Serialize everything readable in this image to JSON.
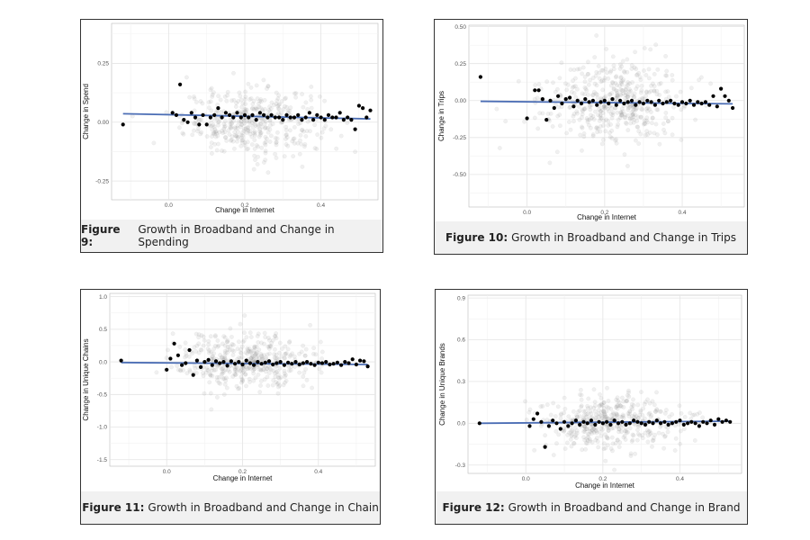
{
  "figures": [
    {
      "fig_label": "Figure 9:",
      "fig_title": "Growth in Broadband and Change in Spending",
      "chart_data": {
        "type": "scatter",
        "title": "Growth in Broadband and Change in Spending",
        "xlabel": "Change in Internet",
        "ylabel": "Change in Spend",
        "xlim": [
          -0.15,
          0.55
        ],
        "ylim": [
          -0.33,
          0.42
        ],
        "xticks": [
          0.0,
          0.2,
          0.4
        ],
        "xtick_labels": [
          "0.0",
          "0.2",
          "0.4"
        ],
        "yticks": [
          -0.25,
          0.0,
          0.25
        ],
        "ytick_labels": [
          "-0.25",
          "0.00",
          "0.25"
        ],
        "fit_line": {
          "x": [
            -0.12,
            0.53
          ],
          "y": [
            0.036,
            0.014
          ]
        },
        "cloud": {
          "center_x": 0.22,
          "spread_x": 0.09,
          "spread_y": 0.07,
          "n": 420
        },
        "binned_points": {
          "x": [
            -0.12,
            0.01,
            0.02,
            0.03,
            0.04,
            0.05,
            0.06,
            0.07,
            0.08,
            0.09,
            0.1,
            0.11,
            0.12,
            0.13,
            0.14,
            0.15,
            0.16,
            0.17,
            0.18,
            0.19,
            0.2,
            0.21,
            0.22,
            0.23,
            0.24,
            0.25,
            0.26,
            0.27,
            0.28,
            0.29,
            0.3,
            0.31,
            0.32,
            0.33,
            0.34,
            0.35,
            0.36,
            0.37,
            0.38,
            0.39,
            0.4,
            0.41,
            0.42,
            0.43,
            0.44,
            0.45,
            0.46,
            0.47,
            0.48,
            0.49,
            0.5,
            0.51,
            0.52,
            0.53
          ],
          "y": [
            -0.01,
            0.04,
            0.03,
            0.16,
            0.01,
            0.0,
            0.04,
            0.02,
            -0.01,
            0.03,
            -0.01,
            0.02,
            0.03,
            0.06,
            0.02,
            0.04,
            0.03,
            0.02,
            0.04,
            0.02,
            0.03,
            0.02,
            0.03,
            0.01,
            0.04,
            0.03,
            0.02,
            0.03,
            0.02,
            0.02,
            0.01,
            0.03,
            0.02,
            0.02,
            0.03,
            0.01,
            0.02,
            0.04,
            0.01,
            0.03,
            0.02,
            0.01,
            0.03,
            0.02,
            0.02,
            0.04,
            0.01,
            0.02,
            0.01,
            -0.03,
            0.07,
            0.06,
            0.02,
            0.05
          ]
        }
      }
    },
    {
      "fig_label": "Figure 10:",
      "fig_title": "Growth in Broadband and Change in Trips",
      "chart_data": {
        "type": "scatter",
        "title": "Growth in Broadband and Change in Trips",
        "xlabel": "Change in Internet",
        "ylabel": "Change in Trips",
        "xlim": [
          -0.15,
          0.56
        ],
        "ylim": [
          -0.72,
          0.51
        ],
        "xticks": [
          0.0,
          0.2,
          0.4
        ],
        "xtick_labels": [
          "0.0",
          "0.2",
          "0.4"
        ],
        "yticks": [
          -0.5,
          -0.25,
          0.0,
          0.25,
          0.5
        ],
        "ytick_labels": [
          "-0.50",
          "-0.25",
          "0.00",
          "0.25",
          "0.50"
        ],
        "fit_line": {
          "x": [
            -0.12,
            0.53
          ],
          "y": [
            -0.005,
            -0.022
          ]
        },
        "cloud": {
          "center_x": 0.22,
          "spread_x": 0.09,
          "spread_y": 0.14,
          "n": 460
        },
        "binned_points": {
          "x": [
            -0.12,
            0.0,
            0.02,
            0.03,
            0.04,
            0.05,
            0.06,
            0.07,
            0.08,
            0.09,
            0.1,
            0.11,
            0.12,
            0.13,
            0.14,
            0.15,
            0.16,
            0.17,
            0.18,
            0.19,
            0.2,
            0.21,
            0.22,
            0.23,
            0.24,
            0.25,
            0.26,
            0.27,
            0.28,
            0.29,
            0.3,
            0.31,
            0.32,
            0.33,
            0.34,
            0.35,
            0.36,
            0.37,
            0.38,
            0.39,
            0.4,
            0.41,
            0.42,
            0.43,
            0.44,
            0.45,
            0.46,
            0.47,
            0.48,
            0.49,
            0.5,
            0.51,
            0.52,
            0.53
          ],
          "y": [
            0.16,
            -0.12,
            0.07,
            0.07,
            0.01,
            -0.13,
            0.0,
            -0.05,
            0.03,
            -0.02,
            0.01,
            0.02,
            -0.04,
            0.0,
            -0.02,
            0.01,
            -0.01,
            0.0,
            -0.03,
            -0.01,
            0.0,
            -0.02,
            0.01,
            -0.03,
            0.0,
            -0.02,
            -0.01,
            0.0,
            -0.03,
            -0.01,
            -0.02,
            0.0,
            -0.01,
            -0.03,
            0.0,
            -0.02,
            -0.01,
            0.0,
            -0.02,
            -0.03,
            -0.01,
            -0.02,
            0.0,
            -0.03,
            -0.01,
            -0.02,
            -0.01,
            -0.03,
            0.03,
            -0.04,
            0.08,
            0.03,
            0.0,
            -0.05
          ]
        }
      }
    },
    {
      "fig_label": "Figure 11:",
      "fig_title": "Growth in Broadband and Change in Chain",
      "chart_data": {
        "type": "scatter",
        "title": "Growth in Broadband and Change in Chain",
        "xlabel": "Change in Internet",
        "ylabel": "Change in Unique Chains",
        "xlim": [
          -0.15,
          0.55
        ],
        "ylim": [
          -1.6,
          1.05
        ],
        "xticks": [
          0.0,
          0.2,
          0.4
        ],
        "xtick_labels": [
          "0.0",
          "0.2",
          "0.4"
        ],
        "yticks": [
          -1.5,
          -1.0,
          -0.5,
          0.0,
          0.5,
          1.0
        ],
        "ytick_labels": [
          "-1.5",
          "-1.0",
          "-0.5",
          "0.0",
          "0.5",
          "1.0"
        ],
        "fit_line": {
          "x": [
            -0.12,
            0.53
          ],
          "y": [
            -0.01,
            -0.04
          ]
        },
        "cloud": {
          "center_x": 0.21,
          "spread_x": 0.09,
          "spread_y": 0.22,
          "n": 440
        },
        "binned_points": {
          "x": [
            -0.12,
            0.0,
            0.01,
            0.02,
            0.03,
            0.04,
            0.05,
            0.06,
            0.07,
            0.08,
            0.09,
            0.1,
            0.11,
            0.12,
            0.13,
            0.14,
            0.15,
            0.16,
            0.17,
            0.18,
            0.19,
            0.2,
            0.21,
            0.22,
            0.23,
            0.24,
            0.25,
            0.26,
            0.27,
            0.28,
            0.29,
            0.3,
            0.31,
            0.32,
            0.33,
            0.34,
            0.35,
            0.36,
            0.37,
            0.38,
            0.39,
            0.4,
            0.41,
            0.42,
            0.43,
            0.44,
            0.45,
            0.46,
            0.47,
            0.48,
            0.49,
            0.5,
            0.51,
            0.52,
            0.53
          ],
          "y": [
            0.02,
            -0.12,
            0.05,
            0.28,
            0.1,
            -0.05,
            -0.02,
            0.18,
            -0.2,
            0.02,
            -0.08,
            0.0,
            0.03,
            -0.05,
            0.01,
            -0.02,
            0.0,
            -0.06,
            0.01,
            -0.03,
            0.0,
            -0.04,
            0.02,
            -0.02,
            -0.05,
            0.0,
            -0.03,
            -0.01,
            0.01,
            -0.04,
            -0.02,
            0.0,
            -0.05,
            -0.01,
            -0.03,
            0.0,
            -0.04,
            -0.02,
            0.0,
            -0.03,
            -0.05,
            -0.01,
            -0.02,
            0.0,
            -0.04,
            -0.03,
            -0.01,
            -0.05,
            0.0,
            -0.02,
            0.04,
            -0.04,
            0.02,
            0.01,
            -0.07
          ]
        }
      }
    },
    {
      "fig_label": "Figure 12:",
      "fig_title": "Growth in Broadband and Change in Brand",
      "chart_data": {
        "type": "scatter",
        "title": "Growth in Broadband and Change in Brand",
        "xlabel": "Change in Internet",
        "ylabel": "Change in Unique Brands",
        "xlim": [
          -0.15,
          0.56
        ],
        "ylim": [
          -0.36,
          0.92
        ],
        "xticks": [
          0.0,
          0.2,
          0.4
        ],
        "xtick_labels": [
          "0.0",
          "0.2",
          "0.4"
        ],
        "yticks": [
          -0.3,
          0.0,
          0.3,
          0.6,
          0.9
        ],
        "ytick_labels": [
          "-0.3",
          "0.0",
          "0.3",
          "0.6",
          "0.9"
        ],
        "fit_line": {
          "x": [
            -0.12,
            0.53
          ],
          "y": [
            0.0,
            0.015
          ]
        },
        "cloud": {
          "center_x": 0.22,
          "spread_x": 0.09,
          "spread_y": 0.1,
          "n": 440
        },
        "binned_points": {
          "x": [
            -0.12,
            0.01,
            0.02,
            0.03,
            0.04,
            0.05,
            0.06,
            0.07,
            0.08,
            0.09,
            0.1,
            0.11,
            0.12,
            0.13,
            0.14,
            0.15,
            0.16,
            0.17,
            0.18,
            0.19,
            0.2,
            0.21,
            0.22,
            0.23,
            0.24,
            0.25,
            0.26,
            0.27,
            0.28,
            0.29,
            0.3,
            0.31,
            0.32,
            0.33,
            0.34,
            0.35,
            0.36,
            0.37,
            0.38,
            0.39,
            0.4,
            0.41,
            0.42,
            0.43,
            0.44,
            0.45,
            0.46,
            0.47,
            0.48,
            0.49,
            0.5,
            0.51,
            0.52,
            0.53
          ],
          "y": [
            0.0,
            -0.02,
            0.03,
            0.07,
            0.01,
            -0.17,
            -0.02,
            0.02,
            0.0,
            -0.04,
            0.01,
            -0.02,
            0.0,
            0.02,
            -0.01,
            0.01,
            0.0,
            0.02,
            -0.01,
            0.01,
            0.0,
            0.01,
            -0.01,
            0.02,
            0.0,
            0.01,
            -0.01,
            0.0,
            0.02,
            0.01,
            0.0,
            -0.01,
            0.01,
            0.0,
            0.02,
            0.0,
            0.01,
            -0.01,
            0.0,
            0.01,
            0.02,
            -0.01,
            0.0,
            0.01,
            0.0,
            -0.02,
            0.01,
            0.0,
            0.02,
            -0.01,
            0.03,
            0.01,
            0.02,
            0.01
          ]
        }
      }
    }
  ]
}
